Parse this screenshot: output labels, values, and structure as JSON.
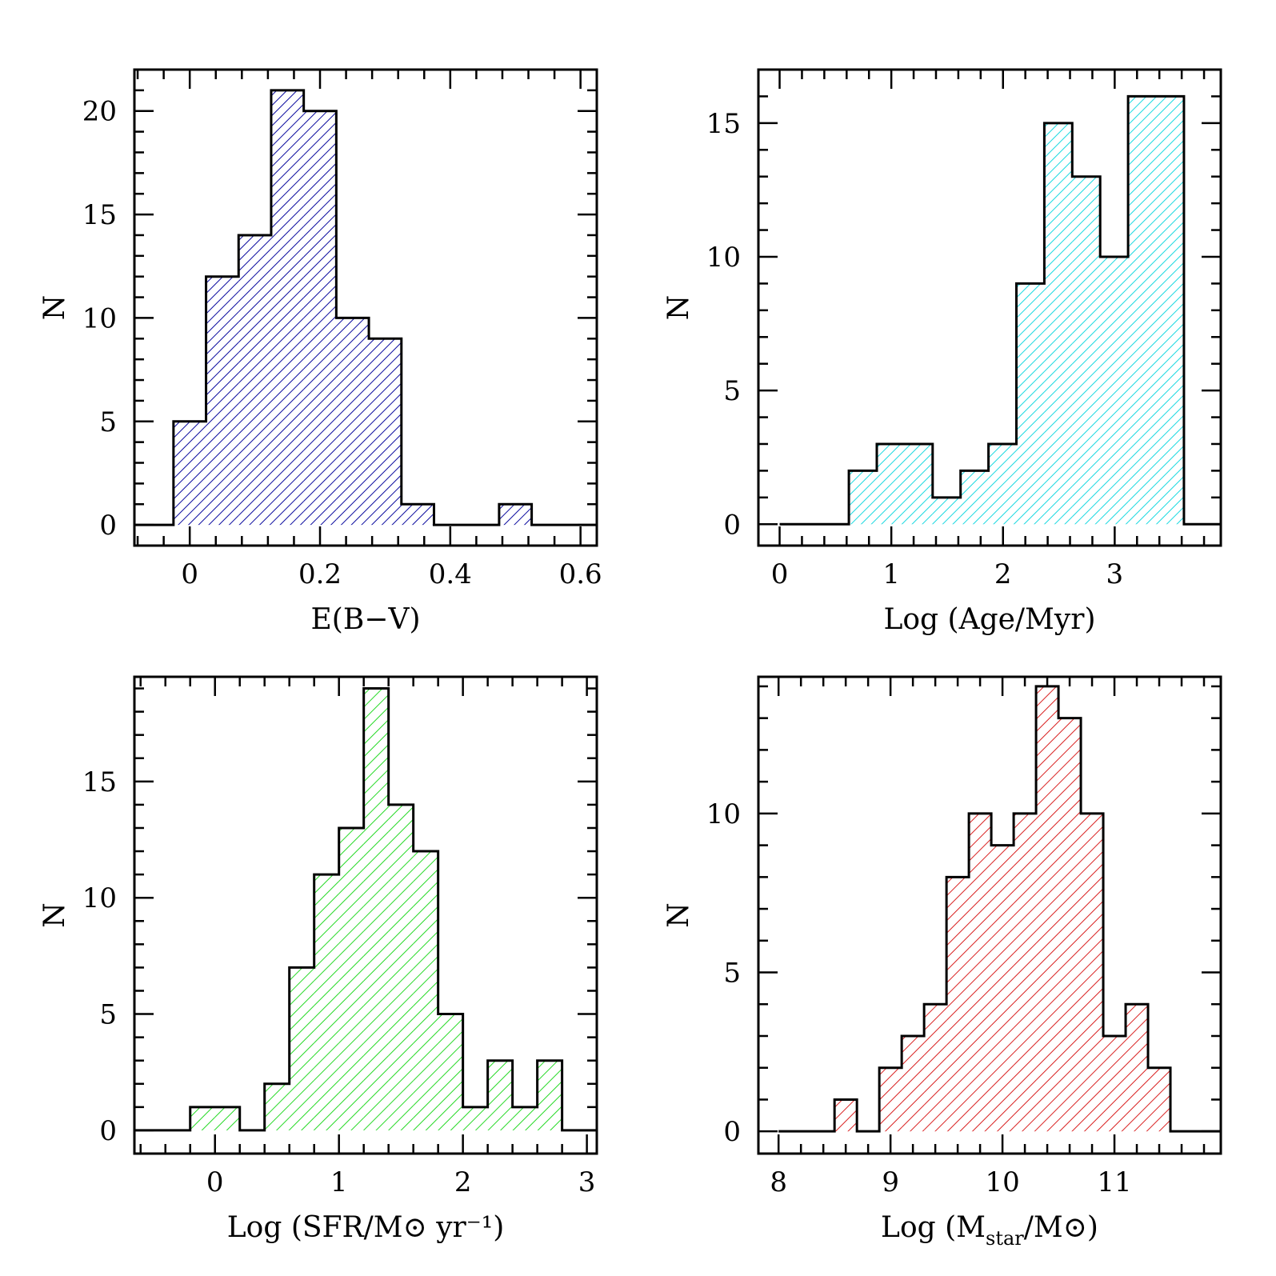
{
  "chart_data": [
    {
      "type": "bar",
      "panel": "top-left",
      "hatch_color": "#0a0a9e",
      "xlabel": "E(B−V)",
      "ylabel": "N",
      "xlim": [
        -0.085,
        0.625
      ],
      "ylim": [
        -1,
        22
      ],
      "xticks": [
        0,
        0.2,
        0.4,
        0.6
      ],
      "xtick_labels": [
        "0",
        "0.2",
        "0.4",
        "0.6"
      ],
      "yticks": [
        0,
        5,
        10,
        15,
        20
      ],
      "ytick_labels": [
        "0",
        "5",
        "10",
        "15",
        "20"
      ],
      "bin_width": 0.05,
      "bin_starts": [
        -0.025,
        0.025,
        0.075,
        0.125,
        0.175,
        0.225,
        0.275,
        0.325,
        0.375,
        0.425,
        0.475,
        0.525
      ],
      "values": [
        5,
        12,
        14,
        21,
        20,
        10,
        9,
        1,
        0,
        0,
        1,
        0
      ],
      "baseline_x": [
        -0.085,
        0.625
      ]
    },
    {
      "type": "bar",
      "panel": "top-right",
      "hatch_color": "#19d9e0",
      "xlabel": "Log (Age/Myr)",
      "ylabel": "N",
      "xlim": [
        -0.19,
        3.95
      ],
      "ylim": [
        -0.8,
        17
      ],
      "xticks": [
        0,
        1,
        2,
        3
      ],
      "xtick_labels": [
        "0",
        "1",
        "2",
        "3"
      ],
      "yticks": [
        0,
        5,
        10,
        15
      ],
      "ytick_labels": [
        "0",
        "5",
        "10",
        "15"
      ],
      "bin_edges": [
        0.62,
        0.87,
        1.37,
        1.62,
        1.87,
        2.12,
        2.37,
        2.62,
        2.87,
        3.12,
        3.62
      ],
      "values": [
        2,
        3,
        1,
        2,
        3,
        9,
        15,
        13,
        10,
        16
      ],
      "baseline_x": [
        0.0,
        3.95
      ]
    },
    {
      "type": "bar",
      "panel": "bottom-left",
      "hatch_color": "#26d926",
      "xlabel": "Log (SFR/M⊙ yr⁻¹)",
      "ylabel": "N",
      "xlim": [
        -0.65,
        3.08
      ],
      "ylim": [
        -1,
        19.5
      ],
      "xticks": [
        0,
        1,
        2,
        3
      ],
      "xtick_labels": [
        "0",
        "1",
        "2",
        "3"
      ],
      "yticks": [
        0,
        5,
        10,
        15
      ],
      "ytick_labels": [
        "0",
        "5",
        "10",
        "15"
      ],
      "bin_width": 0.2,
      "bin_starts": [
        -0.2,
        0.0,
        0.2,
        0.4,
        0.6,
        0.8,
        1.0,
        1.2,
        1.4,
        1.6,
        1.8,
        2.0,
        2.2,
        2.4,
        2.6
      ],
      "values": [
        1,
        1,
        0,
        2,
        7,
        11,
        13,
        19,
        14,
        12,
        5,
        1,
        3,
        1,
        3
      ],
      "baseline_x": [
        -0.65,
        3.08
      ]
    },
    {
      "type": "bar",
      "panel": "bottom-right",
      "hatch_color": "#d92020",
      "xlabel_parts": [
        "Log (M",
        "star",
        "/M⊙)"
      ],
      "ylabel": "N",
      "xlim": [
        7.82,
        11.95
      ],
      "ylim": [
        -0.7,
        14.3
      ],
      "xticks": [
        8,
        9,
        10,
        11
      ],
      "xtick_labels": [
        "8",
        "9",
        "10",
        "11"
      ],
      "yticks": [
        0,
        5,
        10
      ],
      "ytick_labels": [
        "0",
        "5",
        "10"
      ],
      "bin_width": 0.2,
      "bin_starts": [
        8.5,
        8.7,
        8.9,
        9.1,
        9.3,
        9.5,
        9.7,
        9.9,
        10.1,
        10.3,
        10.5,
        10.7,
        10.9,
        11.1,
        11.3
      ],
      "values": [
        1,
        0,
        2,
        3,
        4,
        8,
        10,
        9,
        10,
        14,
        13,
        10,
        3,
        4,
        2
      ],
      "baseline_x": [
        8.0,
        11.95
      ]
    }
  ]
}
